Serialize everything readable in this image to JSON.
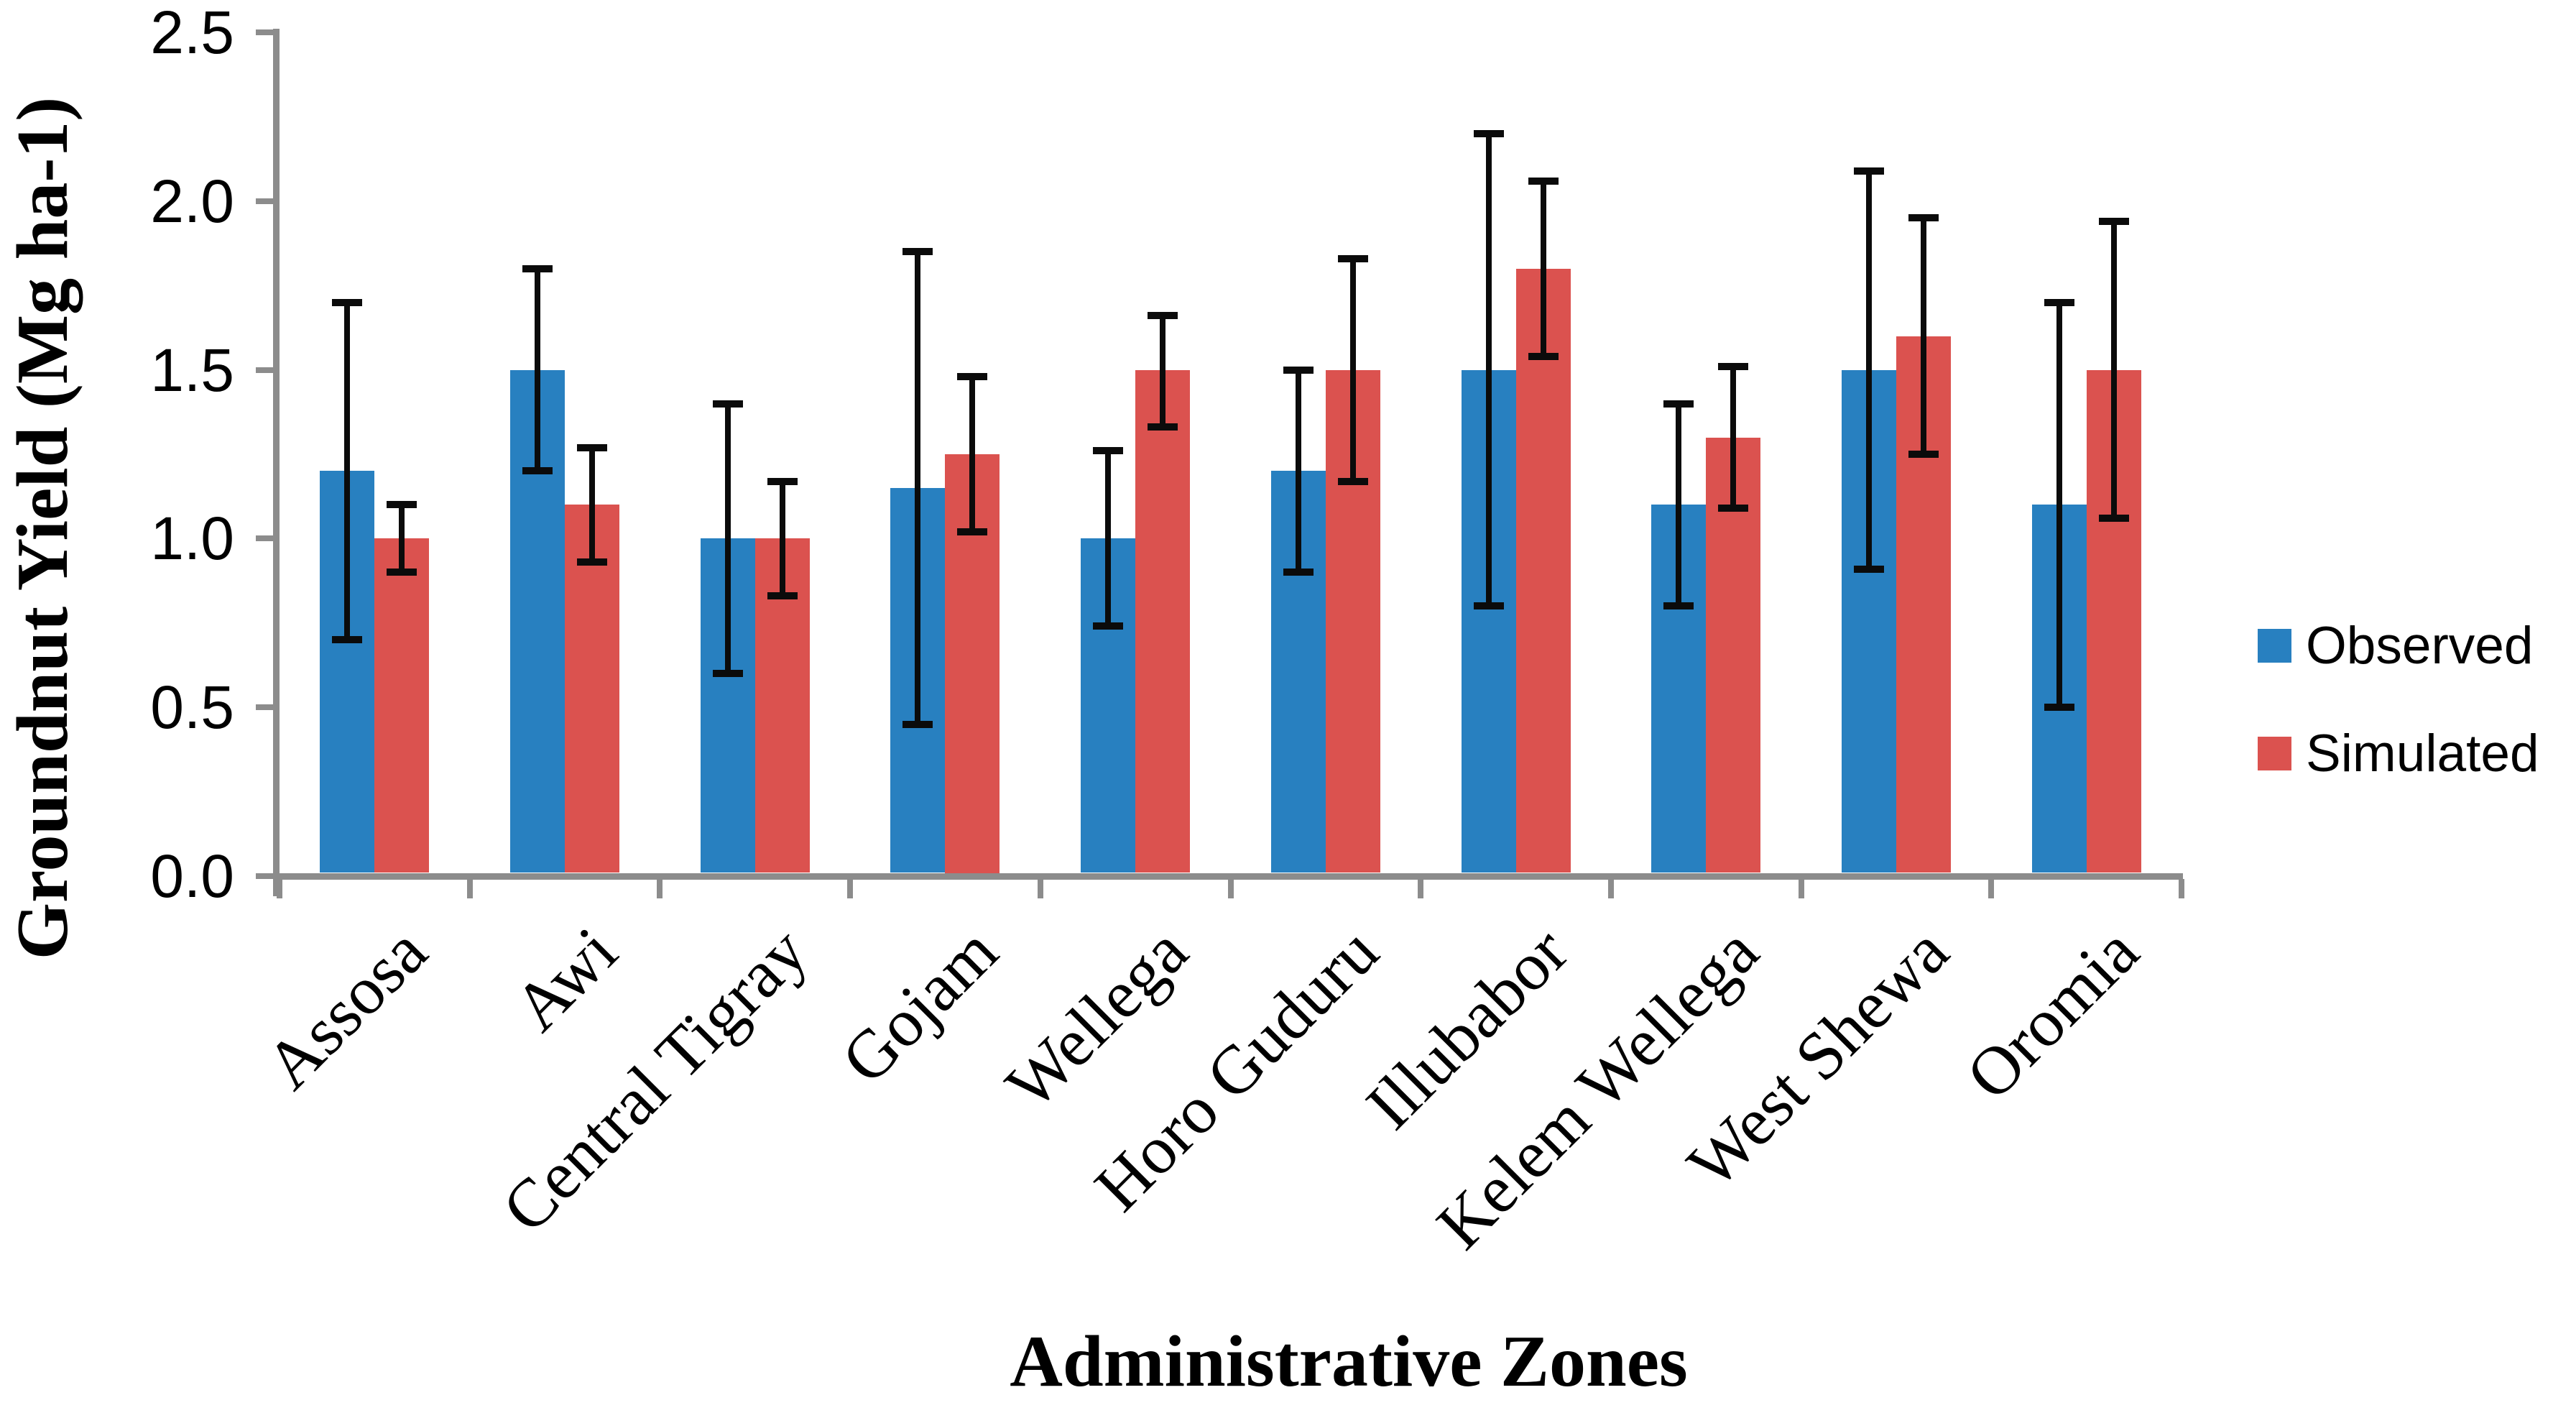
{
  "legend": [
    {
      "label": "Observed",
      "color": "#2880C0"
    },
    {
      "label": "Simulated",
      "color": "#DB524F"
    }
  ],
  "colors": {
    "observed": "#2880C0",
    "simulated": "#DB524F",
    "axis": "#8C8C8C",
    "error_bar": "#0B0B0B",
    "background": "#FFFFFF"
  },
  "chart_data": {
    "type": "bar",
    "title": "",
    "xlabel": "Administrative Zones",
    "ylabel": "Groundnut Yield (Mg ha-1)",
    "ylim": [
      0,
      2.5
    ],
    "yticks": [
      "0.0",
      "0.5",
      "1.0",
      "1.5",
      "2.0",
      "2.5"
    ],
    "grid": false,
    "legend_position": "right",
    "categories": [
      "Assosa",
      "Awi",
      "Central Tigray",
      "Gojam",
      "Wellega",
      "Horo Guduru",
      "Illubabor",
      "Kelem Wellega",
      "West Shewa",
      "Oromia"
    ],
    "series": [
      {
        "name": "Observed",
        "color": "#2880C0",
        "values": [
          1.2,
          1.5,
          1.0,
          1.15,
          1.0,
          1.2,
          1.5,
          1.1,
          1.5,
          1.1
        ],
        "err_lo": [
          0.7,
          1.2,
          0.6,
          0.45,
          0.74,
          0.9,
          0.8,
          0.8,
          0.91,
          0.5
        ],
        "err_hi": [
          1.7,
          1.8,
          1.4,
          1.85,
          1.26,
          1.5,
          2.2,
          1.4,
          2.09,
          1.7
        ]
      },
      {
        "name": "Simulated",
        "color": "#DB524F",
        "values": [
          1.0,
          1.1,
          1.0,
          1.25,
          1.5,
          1.5,
          1.8,
          1.3,
          1.6,
          1.5
        ],
        "err_lo": [
          0.9,
          0.93,
          0.83,
          1.02,
          1.33,
          1.17,
          1.54,
          1.09,
          1.25,
          1.06
        ],
        "err_hi": [
          1.1,
          1.27,
          1.17,
          1.48,
          1.66,
          1.83,
          2.06,
          1.51,
          1.95,
          1.94
        ]
      }
    ]
  }
}
